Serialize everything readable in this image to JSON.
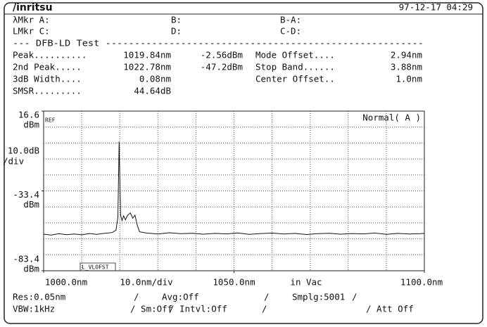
{
  "header": {
    "logo": "/inritsu",
    "datetime": "97-12-17 04:29"
  },
  "markers": [
    [
      "λMkr A:",
      "B:",
      "B-A:"
    ],
    [
      "LMkr C:",
      "D:",
      "C-D:"
    ]
  ],
  "test": {
    "title": "--- DFB-LD Test -------------------------------------------------------",
    "left": [
      [
        "Peak..........",
        "1019.84nm",
        "-2.56dBm"
      ],
      [
        "2nd  Peak.....",
        "1022.78nm",
        "-47.2dBm"
      ],
      [
        " 3dB Width....",
        "0.08nm"
      ],
      [
        "SMSR.........",
        "44.64dB"
      ]
    ],
    "right": [
      [
        "Mode Offset....",
        "2.94nm"
      ],
      [
        "Stop Band......",
        "3.88nm"
      ],
      [
        "Center Offset..",
        "1.0nm"
      ]
    ]
  },
  "chart_data": {
    "type": "line",
    "y_unit": "dBm",
    "scale": "10.0dB",
    "scale_unit": "/div",
    "x_scale": "10.0nm/div",
    "x_note": "in Vac",
    "ref_label": "REF",
    "offset_label": "L_VLOFST",
    "mode_label": "Normal( A )",
    "xlim": [
      1000,
      1100
    ],
    "ylim": [
      -83.4,
      16.6
    ],
    "xticks": [
      {
        "value": 1000,
        "label": "1000.0nm"
      },
      {
        "value": 1050,
        "label": "1050.0nm"
      },
      {
        "value": 1100,
        "label": "1100.0nm"
      }
    ],
    "yticks": [
      16.6,
      -33.4,
      -83.4
    ],
    "color": "#111111",
    "x": [
      1000,
      1002,
      1004,
      1006,
      1008,
      1010,
      1012,
      1014,
      1016,
      1018,
      1019.0,
      1019.5,
      1019.84,
      1020.2,
      1020.6,
      1021.0,
      1021.5,
      1022.0,
      1022.78,
      1023.4,
      1024.0,
      1024.6,
      1025.2,
      1027,
      1030,
      1033,
      1036,
      1039,
      1042,
      1045,
      1048,
      1051,
      1054,
      1057,
      1060,
      1063,
      1066,
      1069,
      1072,
      1075,
      1078,
      1081,
      1084,
      1087,
      1090,
      1093,
      1096,
      1099,
      1100
    ],
    "values": [
      -60.5,
      -61.0,
      -60.2,
      -60.8,
      -60.4,
      -60.9,
      -60.1,
      -60.6,
      -59.9,
      -59.5,
      -58.0,
      -50.0,
      -2.56,
      -48.5,
      -52.0,
      -49.0,
      -51.5,
      -48.8,
      -47.2,
      -50.5,
      -48.6,
      -55.0,
      -59.0,
      -59.8,
      -60.4,
      -59.6,
      -60.2,
      -59.9,
      -60.5,
      -60.0,
      -60.3,
      -59.7,
      -60.6,
      -60.1,
      -59.8,
      -60.4,
      -60.0,
      -60.7,
      -60.2,
      -59.9,
      -60.5,
      -60.1,
      -60.3,
      -59.8,
      -60.6,
      -60.0,
      -60.4,
      -60.2,
      -60.0
    ]
  },
  "footer": [
    [
      "Res:0.05nm",
      "/",
      "Avg:Off",
      "/",
      "Smplg:5001",
      "/"
    ],
    [
      "VBW:1kHz",
      "/ Sm:Off",
      "/ Intvl:Off",
      "/",
      "/ Att Off"
    ]
  ]
}
